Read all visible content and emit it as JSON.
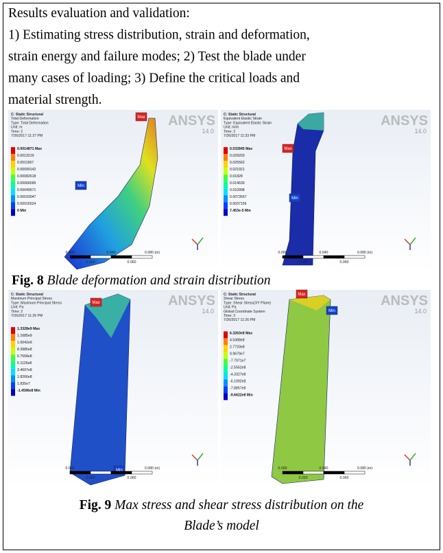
{
  "text": {
    "lines": [
      "Results evaluation and validation:",
      "1) Estimating stress distribution, strain and deformation,",
      "strain energy and failure modes; 2) Test the blade under",
      "many cases of loading; 3) Define the critical loads and",
      "material strength."
    ]
  },
  "panels": [
    {
      "header": [
        "C: Static Structural",
        "Total Deformation",
        "Type: Total Deformation",
        "Unit: m",
        "Time: 2",
        "7/26/2017 11:27 PM"
      ],
      "legend": [
        "0.0014871 Max",
        "0.0013219",
        "0.0011567",
        "0.00099142",
        "0.00082618",
        "0.00066095",
        "0.00049571",
        "0.00033047",
        "0.00016524",
        "0 Min"
      ],
      "logo": "ANSYS",
      "version": "14.0",
      "markers": [
        "Max",
        "Min"
      ],
      "scale_top": [
        "0.000",
        "0.040",
        "0.080 (m)"
      ],
      "scale_bottom": [
        "0.020",
        "0.060"
      ]
    },
    {
      "header": [
        "C: Static Structural",
        "Equivalent Elastic Strain",
        "Type: Equivalent Elastic Strain",
        "Unit: m/m",
        "Time: 2",
        "7/26/2017 11:33 PM"
      ],
      "legend": [
        "0.032845 Max",
        "0.029203",
        "0.025562",
        "0.021921",
        "0.01828",
        "0.014639",
        "0.010998",
        "0.0073567",
        "0.0037156",
        "7.453e-5 Min"
      ],
      "logo": "ANSYS",
      "version": "14.0",
      "markers": [
        "Max",
        "Min"
      ],
      "scale_top": [
        "0.000",
        "0.040",
        "0.080 (m)"
      ],
      "scale_bottom": [
        "0.020",
        "0.060"
      ]
    },
    {
      "header": [
        "C: Static Structural",
        "Maximum Principal Stress",
        "Type: Maximum Principal Stress",
        "Unit: Pa",
        "Time: 2",
        "7/26/2017 11:26 PM"
      ],
      "legend": [
        "1.3328e9 Max",
        "1.1685e9",
        "1.0042e9",
        "8.3985e8",
        "6.7558e8",
        "5.1126e8",
        "3.4697e8",
        "1.8266e8",
        "1.835e7",
        "-1.4596e8 Min"
      ],
      "logo": "ANSYS",
      "version": "14.0",
      "markers": [
        "Max",
        "Min"
      ],
      "scale_top": [
        "0.000",
        "0.080 (m)"
      ],
      "scale_bottom": [
        "0.020",
        "0.060"
      ]
    },
    {
      "header": [
        "C: Static Structural",
        "Shear Stress",
        "Type: Shear Stress(XY Plane)",
        "Unit: Pa",
        "Global Coordinate System",
        "Time: 2",
        "7/26/2017 11:26 PM"
      ],
      "legend": [
        "6.3263e8 Max",
        "4.5498e8",
        "2.7733e8",
        "9.9679e7",
        "-7.7971e7",
        "-2.5562e8",
        "-4.3327e8",
        "-6.1092e8",
        "-7.8857e8",
        "-9.6622e8 Min"
      ],
      "logo": "ANSYS",
      "version": "14.0",
      "markers": [
        "Max",
        "Min"
      ],
      "scale_top": [
        "0.000",
        "0.040",
        "0.080 (m)"
      ],
      "scale_bottom": [
        "0.020",
        "0.060"
      ]
    }
  ],
  "captions": [
    {
      "label": "Fig. 8",
      "text": "Blade deformation and strain distribution"
    },
    {
      "label": "Fig. 9",
      "text": "Max stress and shear stress distribution on the",
      "text2": "Blade’s model"
    }
  ]
}
